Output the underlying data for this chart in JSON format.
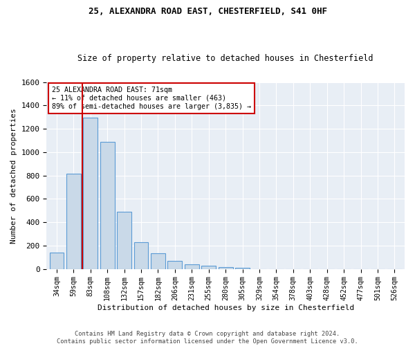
{
  "title1": "25, ALEXANDRA ROAD EAST, CHESTERFIELD, S41 0HF",
  "title2": "Size of property relative to detached houses in Chesterfield",
  "xlabel": "Distribution of detached houses by size in Chesterfield",
  "ylabel": "Number of detached properties",
  "bar_labels": [
    "34sqm",
    "59sqm",
    "83sqm",
    "108sqm",
    "132sqm",
    "157sqm",
    "182sqm",
    "206sqm",
    "231sqm",
    "255sqm",
    "280sqm",
    "305sqm",
    "329sqm",
    "354sqm",
    "378sqm",
    "403sqm",
    "428sqm",
    "452sqm",
    "477sqm",
    "501sqm",
    "526sqm"
  ],
  "bar_values": [
    140,
    815,
    1295,
    1090,
    490,
    232,
    132,
    68,
    40,
    28,
    16,
    12,
    0,
    0,
    0,
    0,
    0,
    0,
    0,
    0,
    0
  ],
  "bar_color": "#c9d9e8",
  "bar_edge_color": "#5b9bd5",
  "vline_x": 1.5,
  "annotation_title": "25 ALEXANDRA ROAD EAST: 71sqm",
  "annotation_line1": "← 11% of detached houses are smaller (463)",
  "annotation_line2": "89% of semi-detached houses are larger (3,835) →",
  "annotation_box_color": "#ffffff",
  "annotation_box_edge": "#cc0000",
  "vline_color": "#cc0000",
  "ylim": [
    0,
    1600
  ],
  "yticks": [
    0,
    200,
    400,
    600,
    800,
    1000,
    1200,
    1400,
    1600
  ],
  "footer1": "Contains HM Land Registry data © Crown copyright and database right 2024.",
  "footer2": "Contains public sector information licensed under the Open Government Licence v3.0.",
  "plot_bg_color": "#e8eef5"
}
